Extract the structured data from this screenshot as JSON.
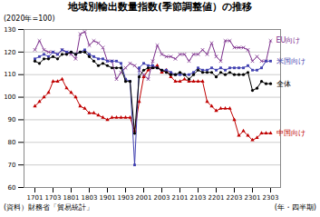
{
  "chart_data": {
    "type": "line",
    "title": "地域別輸出数量指数(季節調整値）の推移",
    "xlabel": "(年・四半期)",
    "ylabel": "(2020年=100)",
    "annotations": [
      "(資料）財務省「貿易統計」"
    ],
    "categories": [
      "1701",
      null,
      null,
      null,
      "1703",
      null,
      null,
      null,
      "1801",
      null,
      null,
      null,
      "1803",
      null,
      null,
      null,
      "1901",
      null,
      null,
      null,
      "1903",
      null,
      null,
      null,
      "2001",
      null,
      null,
      null,
      "2003",
      null,
      null,
      null,
      "2101",
      null,
      null,
      null,
      "2103",
      null,
      null,
      null,
      "2201",
      null,
      null,
      null,
      "2203",
      null,
      null,
      null,
      "2301",
      null,
      null,
      null,
      "2303"
    ],
    "series": [
      {
        "name": "中国向け",
        "color": "#C00000",
        "marker": "triangle",
        "values": [
          96,
          98,
          100,
          102,
          107,
          107,
          108,
          104,
          102,
          100,
          96,
          95,
          93,
          93,
          92,
          91,
          90,
          91,
          91,
          91,
          91,
          91,
          85,
          98,
          109,
          112,
          113,
          114,
          111,
          112,
          109,
          107,
          107,
          108,
          107,
          107,
          107,
          107,
          98,
          96,
          94,
          95,
          95,
          95,
          90,
          83,
          85,
          83,
          81,
          82,
          84,
          84,
          84
        ]
      },
      {
        "name": "EU向け",
        "color": "#7B2D8B",
        "marker": "x",
        "values": [
          121,
          125,
          121,
          120,
          120,
          119,
          121,
          120,
          119,
          117,
          128,
          129,
          123,
          125,
          124,
          122,
          116,
          116,
          108,
          111,
          113,
          115,
          114,
          112,
          110,
          108,
          116,
          123,
          119,
          118,
          118,
          117,
          119,
          119,
          116,
          119,
          119,
          121,
          119,
          124,
          118,
          116,
          125,
          125,
          122,
          122,
          122,
          121,
          116,
          118,
          116,
          116,
          125
        ]
      },
      {
        "name": "米国向け",
        "color": "#4040B0",
        "marker": "square",
        "values": [
          117,
          118,
          119,
          118,
          120,
          119,
          121,
          120,
          120,
          119,
          120,
          121,
          119,
          118,
          117,
          117,
          116,
          116,
          116,
          115,
          108,
          107,
          70,
          113,
          115,
          114,
          114,
          113,
          112,
          112,
          111,
          110,
          110,
          110,
          110,
          111,
          113,
          112,
          112,
          113,
          112,
          113,
          112,
          113,
          113,
          113,
          113,
          114,
          112,
          112,
          113,
          116,
          116
        ]
      },
      {
        "name": "全体",
        "color": "#000000",
        "marker": "circle",
        "values": [
          116,
          115,
          117,
          117,
          118,
          117,
          119,
          119,
          120,
          119,
          120,
          120,
          118,
          116,
          114,
          115,
          114,
          113,
          113,
          113,
          107,
          107,
          84,
          109,
          112,
          113,
          113,
          113,
          112,
          111,
          110,
          110,
          111,
          110,
          108,
          110,
          112,
          111,
          111,
          111,
          109,
          111,
          110,
          111,
          110,
          110,
          110,
          111,
          103,
          104,
          107,
          106,
          106
        ]
      }
    ],
    "ylim": [
      60,
      130
    ],
    "yticks": [
      60,
      70,
      80,
      90,
      100,
      110,
      120,
      130
    ],
    "grid": true
  }
}
